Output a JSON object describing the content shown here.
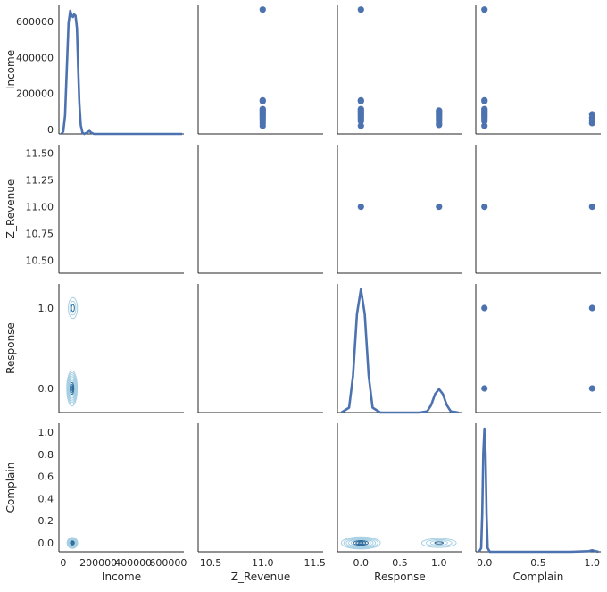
{
  "chart_data": {
    "type": "pairplot",
    "variables": [
      "Income",
      "Z_Revenue",
      "Response",
      "Complain"
    ],
    "colors": {
      "point": "#4c72b0",
      "kde_line": "#4c72b0",
      "contour_light": "#a6cfe3",
      "contour_dark": "#2b6a9a"
    },
    "axes": {
      "Income": {
        "range": [
          -25000,
          690000
        ],
        "ticks": [
          0,
          200000,
          400000,
          600000
        ],
        "tick_labels": [
          "0",
          "200000",
          "400000",
          "600000"
        ]
      },
      "Z_Revenue": {
        "range": [
          10.38,
          11.58
        ],
        "ticks": [
          10.5,
          11.0,
          11.5
        ],
        "x_tick_labels": [
          "10.5",
          "11.0",
          "11.5"
        ],
        "y_ticks": [
          10.5,
          10.75,
          11.0,
          11.25,
          11.5
        ],
        "y_tick_labels": [
          "10.50",
          "10.75",
          "11.00",
          "11.25",
          "11.50"
        ]
      },
      "Response": {
        "range": [
          -0.3,
          1.3
        ],
        "ticks": [
          0,
          0.5,
          1.0
        ],
        "x_tick_labels": [
          "0.0",
          "0.5",
          "1.0"
        ],
        "y_ticks": [
          0,
          1.0
        ],
        "y_tick_labels": [
          "0.0",
          "1.0"
        ]
      },
      "Complain": {
        "range": [
          -0.08,
          1.08
        ],
        "ticks": [
          0,
          0.2,
          0.4,
          0.6,
          0.8,
          1.0
        ],
        "x_ticks": [
          0,
          0.5,
          1.0
        ],
        "x_tick_labels": [
          "0.0",
          "0.5",
          "1.0"
        ],
        "y_tick_labels": [
          "0.0",
          "0.2",
          "0.4",
          "0.6",
          "0.8",
          "1.0"
        ]
      }
    },
    "diagonal_kde": {
      "Income": {
        "x": [
          -10000,
          0,
          10000,
          20000,
          30000,
          40000,
          48000,
          55000,
          62000,
          70000,
          78000,
          85000,
          92000,
          100000,
          110000,
          120000,
          135000,
          150000,
          160000,
          175000,
          200000,
          400000,
          600000,
          680000
        ],
        "d": [
          0,
          0.02,
          0.15,
          0.52,
          0.9,
          1.0,
          0.96,
          0.95,
          0.97,
          0.96,
          0.86,
          0.55,
          0.25,
          0.07,
          0.01,
          0,
          0.01,
          0.025,
          0.01,
          0,
          0,
          0,
          0,
          0
        ]
      },
      "Response": {
        "x": [
          -0.25,
          -0.15,
          -0.1,
          -0.05,
          0,
          0.05,
          0.1,
          0.15,
          0.25,
          0.5,
          0.75,
          0.85,
          0.9,
          0.95,
          1.0,
          1.05,
          1.1,
          1.15,
          1.25
        ],
        "d": [
          0,
          0.04,
          0.3,
          0.8,
          1.0,
          0.8,
          0.3,
          0.04,
          0,
          0,
          0,
          0.01,
          0.06,
          0.15,
          0.19,
          0.15,
          0.06,
          0.01,
          0
        ]
      },
      "Complain": {
        "x": [
          -0.05,
          -0.03,
          -0.02,
          -0.01,
          0,
          0.01,
          0.02,
          0.03,
          0.05,
          0.2,
          0.8,
          0.97,
          1.0,
          1.03,
          1.06
        ],
        "d": [
          0,
          0.03,
          0.3,
          0.8,
          1.0,
          0.8,
          0.3,
          0.03,
          0,
          0,
          0,
          0.005,
          0.012,
          0.005,
          0
        ]
      }
    },
    "scatter": {
      "Income_vs_Z_Revenue": {
        "x": [
          11,
          11,
          11,
          11,
          11,
          11,
          11,
          11,
          11,
          11,
          11,
          11,
          11,
          11
        ],
        "y": [
          666666,
          162000,
          157000,
          113000,
          105000,
          98000,
          90000,
          82000,
          75000,
          66000,
          57000,
          46000,
          34000,
          20000
        ]
      },
      "Income_vs_Response": {
        "x": [
          0,
          0,
          0,
          0,
          0,
          0,
          0,
          0,
          0,
          0,
          0,
          0,
          0,
          1,
          1,
          1,
          1,
          1,
          1,
          1,
          1,
          1,
          1
        ],
        "y": [
          666666,
          162000,
          157000,
          113000,
          105000,
          98000,
          90000,
          82000,
          75000,
          66000,
          57000,
          46000,
          20000,
          105000,
          98000,
          90000,
          82000,
          75000,
          66000,
          57000,
          46000,
          34000,
          25000
        ]
      },
      "Income_vs_Complain": {
        "x": [
          0,
          0,
          0,
          0,
          0,
          0,
          0,
          0,
          0,
          0,
          0,
          0,
          0,
          1,
          1,
          1,
          1
        ],
        "y": [
          666666,
          162000,
          157000,
          113000,
          105000,
          98000,
          90000,
          82000,
          75000,
          66000,
          57000,
          46000,
          20000,
          84000,
          65000,
          48000,
          35000
        ]
      },
      "Z_Revenue_vs_Response": {
        "x": [
          0,
          1
        ],
        "y": [
          11,
          11
        ]
      },
      "Z_Revenue_vs_Complain": {
        "x": [
          0,
          1
        ],
        "y": [
          11,
          11
        ]
      },
      "Response_vs_Complain": {
        "x": [
          0,
          0,
          1,
          1
        ],
        "y": [
          0,
          1,
          0,
          1
        ]
      }
    },
    "kde2d": {
      "Response_vs_Income": [
        {
          "cx": 50000,
          "cy": 0,
          "rx": 30000,
          "ry": 0.22,
          "levels": 9
        },
        {
          "cx": 55000,
          "cy": 1.0,
          "rx": 26000,
          "ry": 0.13,
          "levels": 3
        }
      ],
      "Complain_vs_Income": [
        {
          "cx": 52000,
          "cy": 0,
          "rx": 30000,
          "ry": 0.05,
          "levels": 8
        }
      ],
      "Complain_vs_Response": [
        {
          "cx": 0,
          "cy": 0,
          "rx": 0.25,
          "ry": 0.055,
          "levels": 8
        },
        {
          "cx": 1.0,
          "cy": 0,
          "rx": 0.22,
          "ry": 0.04,
          "levels": 4
        }
      ]
    }
  }
}
